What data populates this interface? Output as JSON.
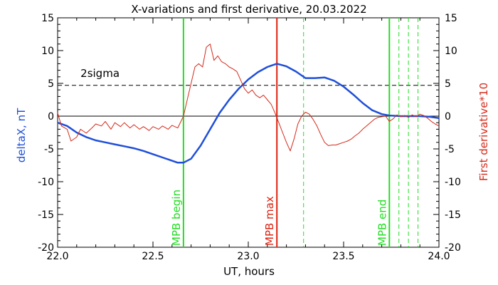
{
  "chart_data": {
    "type": "line",
    "title": "X-variations and first derivative, 20.03.2022",
    "xlabel": "UT, hours",
    "ylabel_left": "deltaX, nT",
    "ylabel_right": "First derivative*10",
    "xlim": [
      22.0,
      24.0
    ],
    "ylim_left": [
      -20,
      15
    ],
    "ylim_right": [
      -20,
      15
    ],
    "x_ticks": [
      "22.0",
      "22.5",
      "23.0",
      "23.5",
      "24.0"
    ],
    "y_ticks_left": [
      "15",
      "10",
      "5",
      "0",
      "-5",
      "-10",
      "-15",
      "-20"
    ],
    "y_ticks_right": [
      "15",
      "10",
      "5",
      "0",
      "-5",
      "-10",
      "-15",
      "-20"
    ],
    "grid": false,
    "colors": {
      "deltaX": "#1f4fd8",
      "derivative": "#d42a1a",
      "mpb_boundary": "#22dd22",
      "mpb_max": "#dd2211",
      "axes": "#000000"
    },
    "sigma_line": {
      "label": "2sigma",
      "y": 4.7
    },
    "vertical_markers": [
      {
        "x": 22.66,
        "label": "MPB begin",
        "style": "solid",
        "color": "green"
      },
      {
        "x": 23.15,
        "label": "MPB max",
        "style": "solid",
        "color": "red"
      },
      {
        "x": 23.29,
        "label": "",
        "style": "dashed",
        "color": "green"
      },
      {
        "x": 23.74,
        "label": "MPB end",
        "style": "solid",
        "color": "green"
      },
      {
        "x": 23.79,
        "label": "",
        "style": "dashed",
        "color": "green"
      },
      {
        "x": 23.84,
        "label": "",
        "style": "dashed",
        "color": "green"
      },
      {
        "x": 23.89,
        "label": "",
        "style": "dashed",
        "color": "green"
      }
    ],
    "series": [
      {
        "axis": "left",
        "x": [
          22.0,
          22.05,
          22.1,
          22.15,
          22.2,
          22.25,
          22.3,
          22.35,
          22.4,
          22.45,
          22.5,
          22.55,
          22.6,
          22.63,
          22.66,
          22.7,
          22.75,
          22.8,
          22.85,
          22.9,
          22.95,
          23.0,
          23.05,
          23.1,
          23.15,
          23.2,
          23.25,
          23.3,
          23.35,
          23.4,
          23.45,
          23.5,
          23.55,
          23.6,
          23.65,
          23.7,
          23.74,
          23.8,
          23.85,
          23.9,
          23.95,
          24.0
        ],
        "values": [
          -1.0,
          -1.5,
          -2.5,
          -3.2,
          -3.7,
          -4.0,
          -4.3,
          -4.6,
          -4.9,
          -5.3,
          -5.8,
          -6.3,
          -6.8,
          -7.1,
          -7.1,
          -6.5,
          -4.5,
          -2.0,
          0.5,
          2.5,
          4.2,
          5.6,
          6.7,
          7.5,
          8.0,
          7.6,
          6.8,
          5.8,
          5.8,
          5.9,
          5.4,
          4.5,
          3.3,
          2.0,
          0.9,
          0.3,
          0.1,
          0.0,
          0.0,
          0.0,
          -0.1,
          -0.3
        ]
      },
      {
        "axis": "right",
        "x": [
          22.0,
          22.02,
          22.05,
          22.07,
          22.1,
          22.12,
          22.15,
          22.18,
          22.2,
          22.23,
          22.25,
          22.28,
          22.3,
          22.33,
          22.35,
          22.38,
          22.4,
          22.43,
          22.45,
          22.48,
          22.5,
          22.53,
          22.55,
          22.58,
          22.6,
          22.63,
          22.66,
          22.68,
          22.7,
          22.72,
          22.74,
          22.76,
          22.78,
          22.8,
          22.82,
          22.84,
          22.86,
          22.88,
          22.9,
          22.92,
          22.94,
          22.96,
          22.98,
          23.0,
          23.02,
          23.04,
          23.06,
          23.08,
          23.1,
          23.12,
          23.14,
          23.16,
          23.18,
          23.2,
          23.22,
          23.24,
          23.26,
          23.28,
          23.3,
          23.32,
          23.34,
          23.36,
          23.38,
          23.4,
          23.42,
          23.44,
          23.46,
          23.48,
          23.5,
          23.52,
          23.54,
          23.56,
          23.58,
          23.6,
          23.62,
          23.64,
          23.66,
          23.68,
          23.7,
          23.72,
          23.74,
          23.76,
          23.78,
          23.8,
          23.82,
          23.84,
          23.86,
          23.88,
          23.9,
          23.92,
          23.94,
          23.96,
          23.98,
          24.0
        ],
        "values": [
          0.5,
          -1.5,
          -2.0,
          -3.8,
          -3.2,
          -2.0,
          -2.6,
          -1.8,
          -1.2,
          -1.5,
          -0.8,
          -2.0,
          -1.0,
          -1.6,
          -1.0,
          -1.8,
          -1.3,
          -2.0,
          -1.6,
          -2.2,
          -1.6,
          -2.0,
          -1.5,
          -2.0,
          -1.4,
          -1.8,
          0.0,
          2.5,
          5.0,
          7.5,
          8.0,
          7.5,
          10.5,
          11.0,
          8.5,
          9.2,
          8.3,
          8.0,
          7.5,
          7.2,
          6.8,
          5.5,
          4.2,
          3.5,
          4.0,
          3.2,
          2.8,
          3.2,
          2.5,
          1.8,
          0.5,
          -1.0,
          -2.5,
          -4.0,
          -5.3,
          -3.5,
          -1.2,
          0.0,
          0.6,
          0.3,
          -0.5,
          -1.5,
          -2.8,
          -4.0,
          -4.5,
          -4.4,
          -4.4,
          -4.2,
          -4.0,
          -3.8,
          -3.5,
          -3.0,
          -2.6,
          -2.0,
          -1.5,
          -1.0,
          -0.5,
          -0.2,
          -0.1,
          0.0,
          -0.8,
          -0.4,
          0.2,
          -0.1,
          0.1,
          -0.2,
          0.2,
          -0.1,
          0.3,
          0.1,
          -0.3,
          -0.8,
          -1.2,
          -1.5
        ]
      }
    ]
  }
}
